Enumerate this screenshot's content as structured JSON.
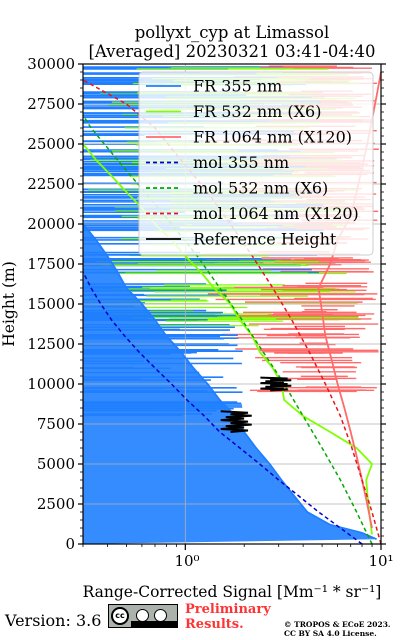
{
  "chart_data": {
    "type": "line",
    "title": "pollyxt_cyp at Limassol",
    "subtitle": "[Averaged] 20230321 03:41-04:40",
    "xlabel": "Range-Corrected Signal [Mm⁻¹ * sr⁻¹]",
    "ylabel": "Height (m)",
    "xscale": "log",
    "xlim": [
      0.3,
      10
    ],
    "ylim": [
      0,
      30000
    ],
    "x_tick_labels": [
      "10⁰",
      "10¹"
    ],
    "y_ticks": [
      0,
      2500,
      5000,
      7500,
      10000,
      12500,
      15000,
      17500,
      20000,
      22500,
      25000,
      27500,
      30000
    ],
    "grid": true,
    "legend_position": "top-right",
    "series": [
      {
        "name": "FR 355 nm",
        "color": "#1f7fff",
        "style": "solid",
        "points": [
          [
            9.5,
            300
          ],
          [
            8,
            700
          ],
          [
            5.5,
            1200
          ],
          [
            4.2,
            2000
          ],
          [
            3.6,
            3000
          ],
          [
            3.1,
            4000
          ],
          [
            2.7,
            5000
          ],
          [
            2.3,
            6000
          ],
          [
            2,
            7000
          ],
          [
            1.8,
            8000
          ],
          [
            1.5,
            9000
          ],
          [
            1.3,
            10000
          ],
          [
            1.1,
            11000
          ],
          [
            0.95,
            12000
          ],
          [
            0.8,
            13000
          ],
          [
            0.7,
            14000
          ],
          [
            0.6,
            15000
          ],
          [
            0.5,
            16000
          ],
          [
            0.45,
            17000
          ],
          [
            0.4,
            18000
          ],
          [
            0.35,
            19000
          ],
          [
            0.3,
            20000
          ]
        ]
      },
      {
        "name": "FR 532 nm (X6)",
        "color": "#7fff00",
        "style": "solid",
        "points": [
          [
            9,
            600
          ],
          [
            8.6,
            2500
          ],
          [
            8.4,
            4000
          ],
          [
            9,
            5000
          ],
          [
            7.5,
            6000
          ],
          [
            5.5,
            7000
          ],
          [
            4,
            8000
          ],
          [
            3.2,
            9000
          ],
          [
            3.1,
            10000
          ],
          [
            2.8,
            11000
          ],
          [
            2.4,
            12000
          ],
          [
            2.2,
            13000
          ],
          [
            1.9,
            14000
          ],
          [
            1.7,
            15000
          ],
          [
            1.4,
            16000
          ],
          [
            1.2,
            17000
          ],
          [
            1,
            18000
          ],
          [
            0.85,
            19000
          ],
          [
            0.7,
            20000
          ],
          [
            0.6,
            21000
          ],
          [
            0.5,
            22000
          ],
          [
            0.42,
            23000
          ],
          [
            0.35,
            24000
          ],
          [
            0.3,
            25000
          ]
        ]
      },
      {
        "name": "FR 1064 nm (X120)",
        "color": "#ff6b6b",
        "style": "solid",
        "points": [
          [
            9,
            1000
          ],
          [
            8.5,
            2500
          ],
          [
            8,
            4000
          ],
          [
            7.5,
            5500
          ],
          [
            7,
            7000
          ],
          [
            6.5,
            8500
          ],
          [
            6,
            10000
          ],
          [
            5.6,
            11500
          ],
          [
            5.2,
            13000
          ],
          [
            5,
            14500
          ],
          [
            4.8,
            16000
          ],
          [
            5.5,
            17500
          ],
          [
            6,
            19000
          ],
          [
            7,
            20500
          ],
          [
            7.5,
            22000
          ],
          [
            8,
            23500
          ],
          [
            8.5,
            25000
          ],
          [
            9,
            26500
          ],
          [
            9.5,
            28000
          ],
          [
            10,
            29500
          ]
        ]
      },
      {
        "name": "mol 355 nm",
        "color": "#0000cc",
        "style": "dashed",
        "points": [
          [
            8,
            0
          ],
          [
            6.2,
            1000
          ],
          [
            4.8,
            2000
          ],
          [
            3.8,
            3000
          ],
          [
            3,
            4000
          ],
          [
            2.4,
            5000
          ],
          [
            1.9,
            6000
          ],
          [
            1.5,
            7000
          ],
          [
            1.25,
            8000
          ],
          [
            1.02,
            9000
          ],
          [
            0.85,
            10000
          ],
          [
            0.7,
            11000
          ],
          [
            0.58,
            12000
          ],
          [
            0.49,
            13000
          ],
          [
            0.42,
            14000
          ],
          [
            0.37,
            15000
          ],
          [
            0.33,
            16000
          ],
          [
            0.3,
            17000
          ]
        ]
      },
      {
        "name": "mol 532 nm (X6)",
        "color": "#00aa00",
        "style": "dashed",
        "points": [
          [
            9,
            0
          ],
          [
            7.5,
            2000
          ],
          [
            6.2,
            4000
          ],
          [
            5,
            6000
          ],
          [
            4,
            8000
          ],
          [
            3.2,
            10000
          ],
          [
            2.5,
            12000
          ],
          [
            1.95,
            14000
          ],
          [
            1.5,
            16000
          ],
          [
            1.15,
            18000
          ],
          [
            0.85,
            20000
          ],
          [
            0.62,
            22000
          ],
          [
            0.45,
            24000
          ],
          [
            0.33,
            26000
          ],
          [
            0.3,
            26800
          ]
        ]
      },
      {
        "name": "mol 1064 nm (X120)",
        "color": "#e8141c",
        "style": "dashed",
        "points": [
          [
            10,
            0
          ],
          [
            9,
            2000
          ],
          [
            8,
            4000
          ],
          [
            7.1,
            6000
          ],
          [
            6.2,
            8000
          ],
          [
            5.2,
            10000
          ],
          [
            4.3,
            12000
          ],
          [
            3.5,
            14000
          ],
          [
            2.8,
            16000
          ],
          [
            2.2,
            18000
          ],
          [
            1.7,
            20000
          ],
          [
            1.3,
            22000
          ],
          [
            0.95,
            24000
          ],
          [
            0.7,
            26000
          ],
          [
            0.5,
            27500
          ],
          [
            0.3,
            29000
          ]
        ]
      },
      {
        "name": "Reference Height",
        "color": "#000000",
        "style": "solid",
        "segments": [
          {
            "y_range": [
              7000,
              8300
            ],
            "x_center": 1.85
          },
          {
            "y_range": [
              9600,
              10400
            ],
            "x_center": 2.95
          }
        ]
      }
    ]
  },
  "footer": {
    "version_text": "Version: 3.6",
    "cc_badge_icon": "creative-commons-by-sa-icon",
    "preliminary_line1": "Preliminary",
    "preliminary_line2": "Results.",
    "copyright_line1": "© TROPOS & ECoE 2023.",
    "copyright_line2": "CC BY SA 4.0 License."
  }
}
